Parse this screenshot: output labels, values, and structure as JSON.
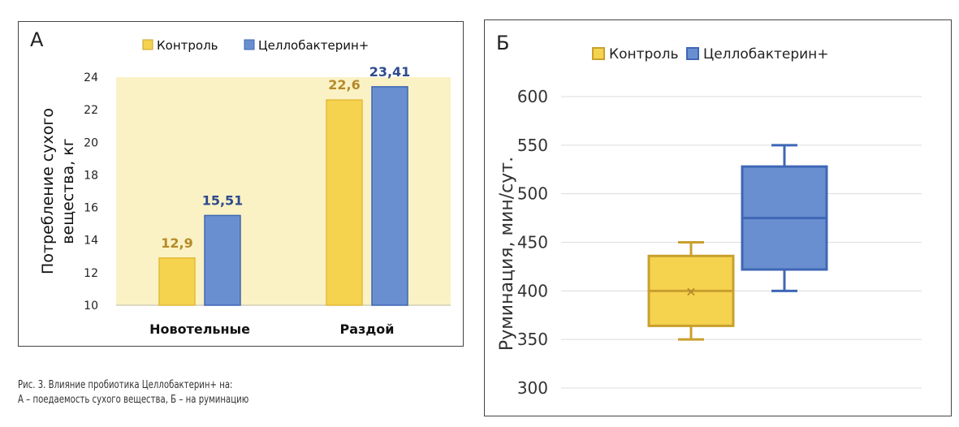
{
  "chart_data": [
    {
      "type": "bar",
      "panel_label": "А",
      "categories": [
        "Новотельные",
        "Раздой"
      ],
      "series": [
        {
          "name": "Контроль",
          "values": [
            12.9,
            22.6
          ],
          "value_labels": [
            "12,9",
            "22,6"
          ],
          "color": "#F5D34E",
          "label_color": "#B58A2A"
        },
        {
          "name": "Целлобактерин+",
          "values": [
            15.51,
            23.41
          ],
          "value_labels": [
            "15,51",
            "23,41"
          ],
          "color": "#6A8FD0",
          "label_color": "#2E4A8E"
        }
      ],
      "ylabel_lines": [
        "Потребление сухого",
        "вещества, кг"
      ],
      "ylim": [
        10,
        24
      ],
      "yticks": [
        "10",
        "12",
        "14",
        "16",
        "18",
        "20",
        "22",
        "24"
      ],
      "plot_background": "#FAF2C4",
      "grid": false,
      "legend_position": "top"
    },
    {
      "type": "boxplot",
      "panel_label": "Б",
      "ylabel": "Руминация, мин/сут.",
      "ylim": [
        300,
        600
      ],
      "yticks": [
        "300",
        "350",
        "400",
        "450",
        "500",
        "550",
        "600"
      ],
      "grid": true,
      "legend_position": "top",
      "series": [
        {
          "name": "Контроль",
          "min": 350,
          "q1": 364,
          "median": 400,
          "mean": 400,
          "q3": 436,
          "max": 450,
          "color": "#F5D34E",
          "edge": "#C9A02E"
        },
        {
          "name": "Целлобактерин+",
          "min": 400,
          "q1": 422,
          "median": 475,
          "q3": 528,
          "max": 550,
          "color": "#6A8FD0",
          "edge": "#3F67B6"
        }
      ]
    }
  ],
  "caption": {
    "line1": "Рис. 3. Влияние пробиотика Целлобактерин+ на:",
    "line2": "А – поедаемость сухого вещества, Б – на руминацию"
  }
}
